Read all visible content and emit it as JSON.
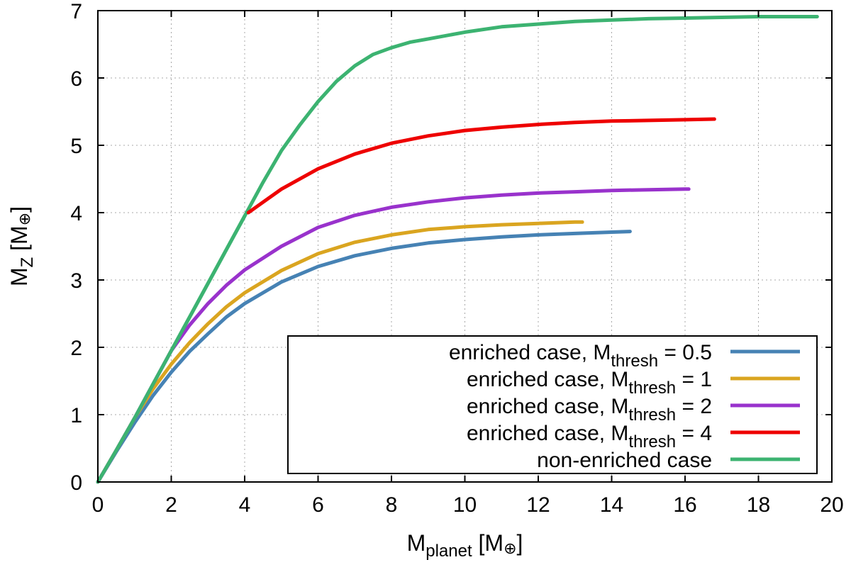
{
  "chart_data": {
    "type": "line",
    "title": "",
    "xlabel": {
      "main": "M",
      "sub": "planet",
      "rest": " [M",
      "sym": "⊕",
      "close": "]"
    },
    "ylabel": {
      "main": "M",
      "sub": "Z",
      "rest": " [M",
      "sym": "⊕",
      "close": "]"
    },
    "xlim": [
      0,
      20
    ],
    "ylim": [
      0,
      7
    ],
    "xticks": [
      0,
      2,
      4,
      6,
      8,
      10,
      12,
      14,
      16,
      18,
      20
    ],
    "yticks": [
      0,
      1,
      2,
      3,
      4,
      5,
      6,
      7
    ],
    "grid": true,
    "legend_position": "bottom-right",
    "series": [
      {
        "name": "enriched case, M_thresh = 0.5",
        "label_pre": "enriched case, M",
        "label_sub": "thresh",
        "label_post": " = 0.5",
        "color": "#4682b4",
        "x": [
          0,
          0.5,
          1,
          1.5,
          2,
          2.5,
          3,
          3.5,
          4,
          5,
          6,
          7,
          8,
          9,
          10,
          11,
          12,
          13,
          14,
          14.5
        ],
        "y": [
          0,
          0.45,
          0.88,
          1.28,
          1.63,
          1.94,
          2.2,
          2.45,
          2.65,
          2.97,
          3.2,
          3.36,
          3.47,
          3.55,
          3.6,
          3.64,
          3.67,
          3.69,
          3.71,
          3.72
        ]
      },
      {
        "name": "enriched case, M_thresh = 1",
        "label_pre": "enriched case, M",
        "label_sub": "thresh",
        "label_post": " = 1",
        "color": "#daa520",
        "x": [
          0,
          0.5,
          1,
          1.5,
          2,
          2.5,
          3,
          3.5,
          4,
          5,
          6,
          7,
          8,
          9,
          10,
          11,
          12,
          13,
          13.2
        ],
        "y": [
          0,
          0.47,
          0.95,
          1.38,
          1.75,
          2.07,
          2.35,
          2.6,
          2.81,
          3.14,
          3.39,
          3.56,
          3.67,
          3.75,
          3.79,
          3.82,
          3.84,
          3.86,
          3.86
        ]
      },
      {
        "name": "enriched case, M_thresh = 2",
        "label_pre": "enriched case, M",
        "label_sub": "thresh",
        "label_post": " = 2",
        "color": "#9932cc",
        "x": [
          0,
          0.5,
          1,
          1.5,
          2,
          2.5,
          3,
          3.5,
          4,
          5,
          6,
          7,
          8,
          9,
          10,
          11,
          12,
          13,
          14,
          15,
          16,
          16.1
        ],
        "y": [
          0,
          0.47,
          0.95,
          1.45,
          1.95,
          2.33,
          2.65,
          2.92,
          3.15,
          3.5,
          3.78,
          3.96,
          4.08,
          4.16,
          4.22,
          4.26,
          4.29,
          4.31,
          4.33,
          4.34,
          4.35,
          4.35
        ]
      },
      {
        "name": "enriched case, M_thresh = 4",
        "label_pre": "enriched case, M",
        "label_sub": "thresh",
        "label_post": " = 4",
        "color": "#ee0000",
        "x": [
          4.1,
          5,
          6,
          7,
          8,
          9,
          10,
          11,
          12,
          13,
          14,
          15,
          16,
          16.8
        ],
        "y": [
          4.0,
          4.35,
          4.65,
          4.87,
          5.03,
          5.14,
          5.22,
          5.27,
          5.31,
          5.34,
          5.36,
          5.37,
          5.38,
          5.39
        ]
      },
      {
        "name": "non-enriched case",
        "label_pre": "non-enriched case",
        "label_sub": "",
        "label_post": "",
        "color": "#3cb371",
        "x": [
          0,
          0.5,
          1,
          1.5,
          2,
          2.5,
          3,
          3.5,
          4,
          4.5,
          5,
          5.5,
          6,
          6.5,
          7,
          7.5,
          8,
          8.5,
          9,
          10,
          11,
          12,
          13,
          14,
          15,
          16,
          17,
          18,
          19,
          19.6
        ],
        "y": [
          0,
          0.47,
          0.95,
          1.45,
          1.95,
          2.45,
          2.95,
          3.45,
          3.95,
          4.45,
          4.92,
          5.3,
          5.65,
          5.95,
          6.18,
          6.35,
          6.45,
          6.53,
          6.58,
          6.68,
          6.76,
          6.8,
          6.84,
          6.86,
          6.88,
          6.89,
          6.9,
          6.91,
          6.91,
          6.91
        ]
      }
    ]
  }
}
